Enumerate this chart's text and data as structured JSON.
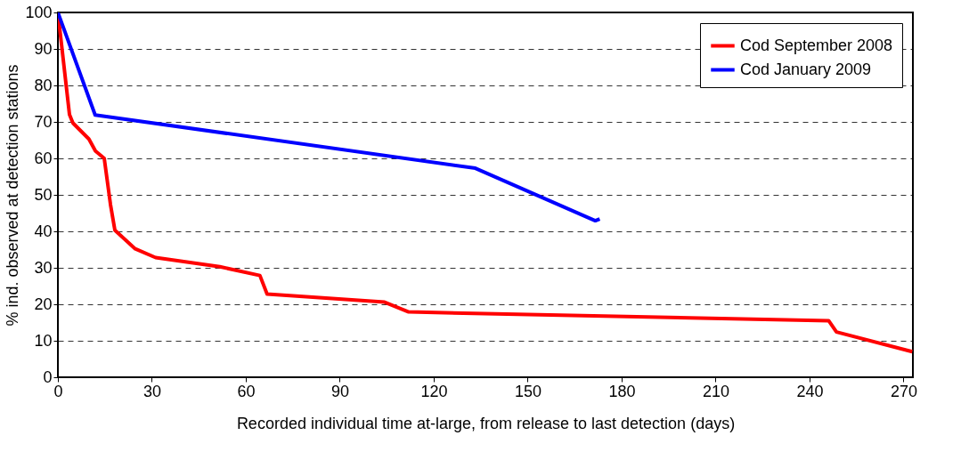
{
  "chart_data": {
    "type": "line",
    "xlabel": "Recorded individual time at-large, from release to last detection (days)",
    "ylabel": "% ind. observed at detection stations",
    "xlim": [
      0,
      273
    ],
    "xticks": [
      0,
      30,
      60,
      90,
      120,
      150,
      180,
      210,
      240,
      270
    ],
    "ylim": [
      0,
      100
    ],
    "yticks": [
      0,
      10,
      20,
      30,
      40,
      50,
      60,
      70,
      80,
      90,
      100
    ],
    "grid": "y",
    "legend": "top right",
    "line_style": "solid",
    "marker": "none",
    "series": [
      {
        "name": "Cod September 2008",
        "color": "#ff0000",
        "x": [
          0,
          3.7,
          4.8,
          9.9,
          12,
          14.8,
          16.8,
          18.2,
          24.7,
          31.2,
          51.7,
          64.5,
          66.8,
          104.3,
          112,
          246.1,
          248.6,
          272.8
        ],
        "values": [
          100,
          72,
          69.7,
          65.3,
          62,
          60,
          47.3,
          40.3,
          35.2,
          32.8,
          30.3,
          27.9,
          22.8,
          20.6,
          17.9,
          15.5,
          12.4,
          7.0
        ]
      },
      {
        "name": "Cod January 2009",
        "color": "#0000ff",
        "x": [
          0,
          11.9,
          133.3,
          171.6,
          173
        ],
        "values": [
          100,
          71.9,
          57.3,
          42.9,
          43.4
        ]
      }
    ]
  }
}
